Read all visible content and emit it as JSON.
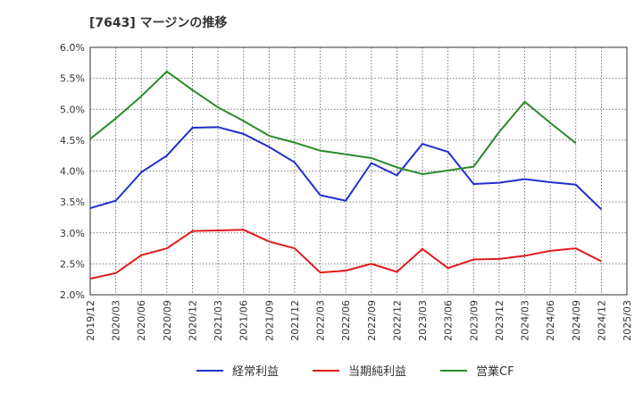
{
  "chart_data": {
    "type": "line",
    "title": "[7643]  マージンの推移",
    "x": [
      "2019/12",
      "2020/03",
      "2020/06",
      "2020/09",
      "2020/12",
      "2021/03",
      "2021/06",
      "2021/09",
      "2021/12",
      "2022/03",
      "2022/06",
      "2022/09",
      "2022/12",
      "2023/03",
      "2023/06",
      "2023/09",
      "2023/12",
      "2024/03",
      "2024/06",
      "2024/09",
      "2024/12",
      "2025/03"
    ],
    "y_ticks": [
      "2.0%",
      "2.5%",
      "3.0%",
      "3.5%",
      "4.0%",
      "4.5%",
      "5.0%",
      "5.5%",
      "6.0%"
    ],
    "ylim": [
      2.0,
      6.0
    ],
    "grid": true,
    "legend_position": "bottom",
    "series": [
      {
        "name": "経常利益",
        "color": "#1f2fcc",
        "values": [
          3.4,
          3.52,
          3.98,
          4.25,
          4.7,
          4.71,
          4.6,
          4.39,
          4.14,
          3.61,
          3.52,
          4.13,
          3.93,
          4.44,
          4.31,
          3.79,
          3.81,
          3.87,
          3.82,
          3.78,
          3.38,
          null
        ]
      },
      {
        "name": "当期純利益",
        "color": "#e01a1a",
        "values": [
          2.26,
          2.35,
          2.64,
          2.75,
          3.03,
          3.04,
          3.05,
          2.86,
          2.75,
          2.36,
          2.39,
          2.5,
          2.37,
          2.74,
          2.43,
          2.57,
          2.58,
          2.63,
          2.71,
          2.75,
          2.54,
          null
        ]
      },
      {
        "name": "営業CF",
        "color": "#2b8a2b",
        "values": [
          4.52,
          4.85,
          5.21,
          5.61,
          5.31,
          5.03,
          4.81,
          4.57,
          4.46,
          4.33,
          4.27,
          4.21,
          4.06,
          3.95,
          4.01,
          4.07,
          4.63,
          5.12,
          4.78,
          4.45,
          null,
          null
        ]
      }
    ]
  }
}
